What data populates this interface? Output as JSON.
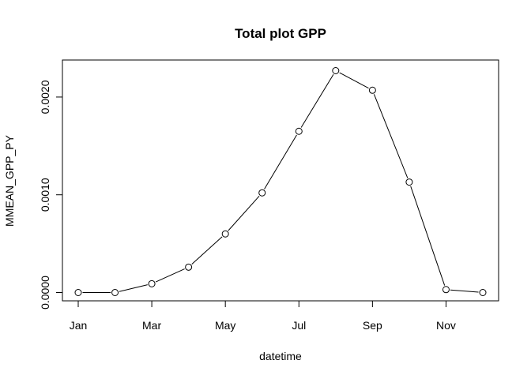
{
  "chart_data": {
    "type": "line",
    "title": "Total plot GPP",
    "xlabel": "datetime",
    "ylabel": "MMEAN_GPP_PY",
    "x_ticks": [
      "Jan",
      "Mar",
      "May",
      "Jul",
      "Sep",
      "Nov"
    ],
    "y_ticks": [
      "0.0000",
      "0.0010",
      "0.0020"
    ],
    "y_tick_values": [
      0,
      0.001,
      0.002
    ],
    "ylim": [
      0,
      0.00227
    ],
    "marker": "open-circle",
    "line_color": "#000000",
    "series": [
      {
        "x": [
          "Jan",
          "Feb",
          "Mar",
          "Apr",
          "May",
          "Jun",
          "Jul",
          "Aug",
          "Sep",
          "Oct",
          "Nov",
          "Dec"
        ],
        "values": [
          0.0,
          0.0,
          9e-05,
          0.00026,
          0.0006,
          0.00102,
          0.00165,
          0.00227,
          0.00207,
          0.00113,
          3e-05,
          0.0
        ]
      }
    ]
  }
}
